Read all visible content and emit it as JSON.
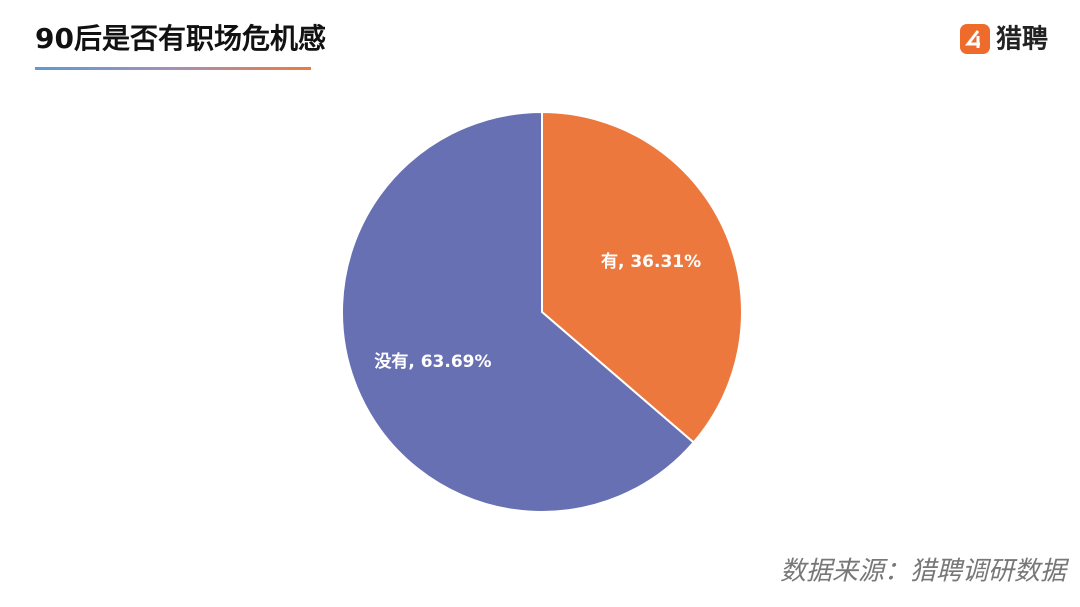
{
  "chart_data": {
    "type": "pie",
    "title": "90后是否有职场危机感",
    "brand": "猎聘",
    "source": "数据来源：猎聘调研数据",
    "categories": [
      "有",
      "没有"
    ],
    "values": [
      36.31,
      63.69
    ],
    "value_labels": [
      "有, 36.31%",
      "没有, 63.69%"
    ],
    "colors": [
      "#ec783e",
      "#6770b2"
    ]
  }
}
